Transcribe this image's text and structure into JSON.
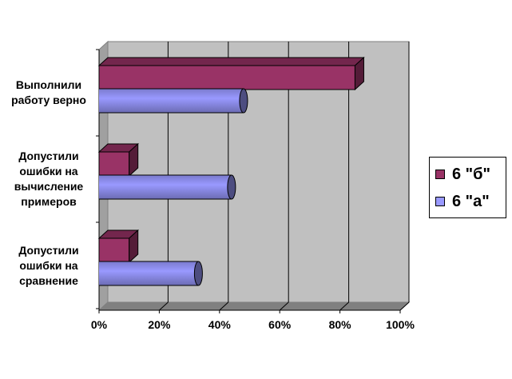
{
  "chart_data": {
    "type": "bar",
    "orientation": "horizontal",
    "style": "3d-cylinder",
    "categories": [
      "Выполнили\nработу верно",
      "Допустили\nошибки на\nвычисление\nпримеров",
      "Допустили\nошибки на\nсравнение"
    ],
    "series": [
      {
        "name": "6 \"б\"",
        "color": "#993366",
        "values": [
          85,
          10,
          10
        ]
      },
      {
        "name": "6 \"а\"",
        "color": "#9999FF",
        "values": [
          48,
          44,
          33
        ]
      }
    ],
    "xlim": [
      0,
      100
    ],
    "ticks": [
      "0%",
      "20%",
      "40%",
      "60%",
      "80%",
      "100%"
    ],
    "grid": true,
    "legend_position": "right",
    "wall_color": "#C0C0C0"
  }
}
